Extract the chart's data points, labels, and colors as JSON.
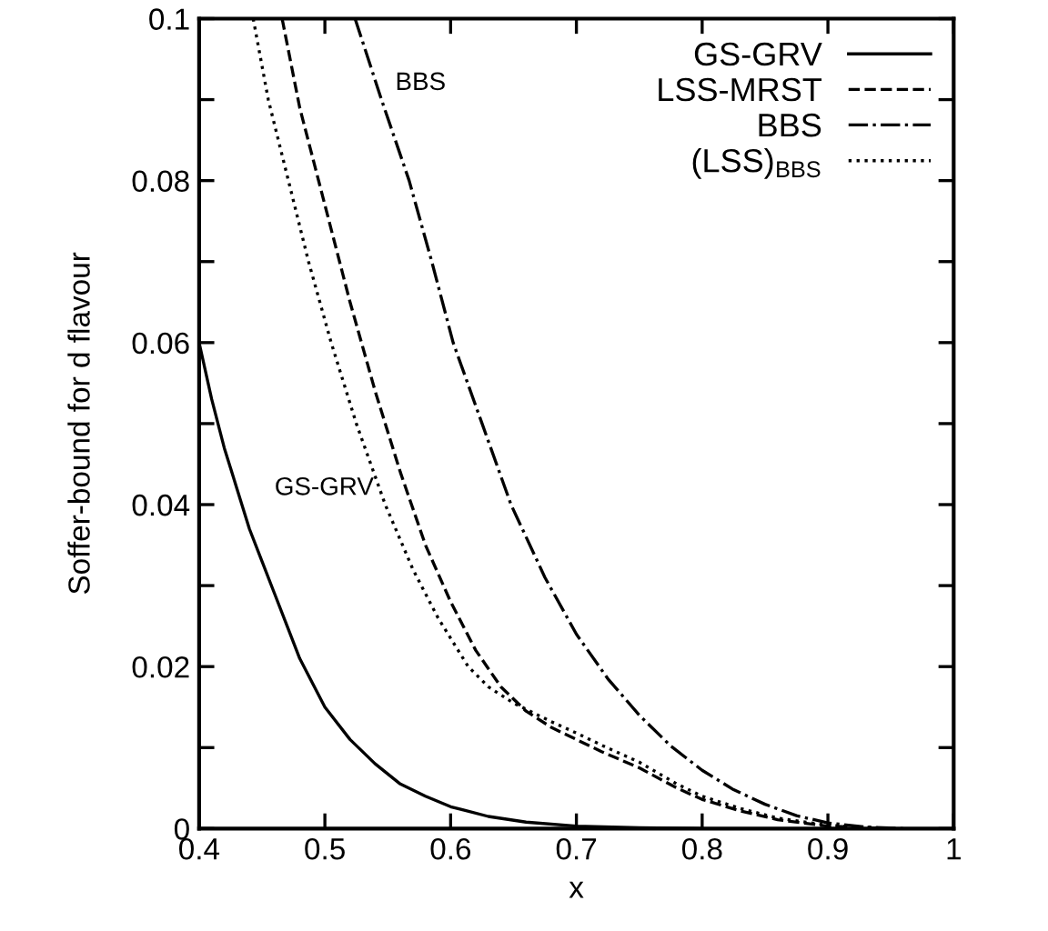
{
  "chart_data": {
    "type": "line",
    "xlabel": "x",
    "ylabel": "Soffer-bound for d flavour",
    "xlim": [
      0.4,
      1
    ],
    "ylim": [
      0,
      0.1
    ],
    "xticks": [
      0.4,
      0.5,
      0.6,
      0.7,
      0.8,
      0.9,
      1
    ],
    "yticks": [
      0,
      {
        "value": 0.01,
        "label": null
      },
      0.02,
      {
        "value": 0.03,
        "label": null
      },
      0.04,
      {
        "value": 0.05,
        "label": null
      },
      0.06,
      {
        "value": 0.07,
        "label": null
      },
      0.08,
      {
        "value": 0.09,
        "label": null
      },
      0.1
    ],
    "grid": false,
    "legend": "top right",
    "marker": "none",
    "series": [
      {
        "name": "GS-GRV",
        "color": "#000000",
        "line_style": "solid",
        "x": [
          0.4,
          0.41,
          0.42,
          0.43,
          0.44,
          0.45,
          0.46,
          0.47,
          0.48,
          0.49,
          0.5,
          0.52,
          0.54,
          0.56,
          0.58,
          0.6,
          0.63,
          0.66,
          0.7,
          0.75,
          0.8
        ],
        "values": [
          0.06,
          0.053,
          0.047,
          0.042,
          0.037,
          0.033,
          0.029,
          0.025,
          0.021,
          0.018,
          0.015,
          0.011,
          0.008,
          0.0055,
          0.004,
          0.0027,
          0.0015,
          0.0008,
          0.0003,
          0.0001,
          0
        ]
      },
      {
        "name": "LSS-MRST",
        "color": "#000000",
        "line_style": "dashed",
        "x": [
          0.466,
          0.48,
          0.5,
          0.52,
          0.54,
          0.56,
          0.58,
          0.6,
          0.62,
          0.64,
          0.66,
          0.68,
          0.7,
          0.72,
          0.75,
          0.78,
          0.8,
          0.83,
          0.86,
          0.9,
          0.95
        ],
        "values": [
          0.1,
          0.089,
          0.077,
          0.065,
          0.054,
          0.044,
          0.035,
          0.028,
          0.022,
          0.0175,
          0.0145,
          0.0125,
          0.011,
          0.0095,
          0.0075,
          0.005,
          0.0036,
          0.0022,
          0.0011,
          0.0003,
          0
        ]
      },
      {
        "name": "BBS",
        "color": "#000000",
        "line_style": "dashdot",
        "x": [
          0.524,
          0.545,
          0.567,
          0.585,
          0.602,
          0.625,
          0.648,
          0.675,
          0.7,
          0.725,
          0.75,
          0.775,
          0.8,
          0.825,
          0.85,
          0.875,
          0.9,
          0.93,
          0.96
        ],
        "values": [
          0.1,
          0.09,
          0.08,
          0.07,
          0.06,
          0.05,
          0.04,
          0.031,
          0.024,
          0.0185,
          0.014,
          0.0102,
          0.0072,
          0.0048,
          0.003,
          0.0016,
          0.0007,
          0.0002,
          0
        ]
      },
      {
        "name": "(LSS)$_{BBS}$",
        "color": "#000000",
        "line_style": "dotted",
        "x": [
          0.443,
          0.455,
          0.471,
          0.487,
          0.505,
          0.525,
          0.548,
          0.57,
          0.59,
          0.614,
          0.63,
          0.65,
          0.68,
          0.7,
          0.72,
          0.75,
          0.78,
          0.8,
          0.83,
          0.86,
          0.9,
          0.95
        ],
        "values": [
          0.1,
          0.09,
          0.08,
          0.07,
          0.06,
          0.05,
          0.04,
          0.032,
          0.026,
          0.02,
          0.0175,
          0.0155,
          0.0132,
          0.0118,
          0.0103,
          0.0082,
          0.0055,
          0.004,
          0.0025,
          0.0013,
          0.0004,
          0
        ]
      }
    ],
    "annotations": [
      "BBS",
      "GS-GRV"
    ]
  }
}
